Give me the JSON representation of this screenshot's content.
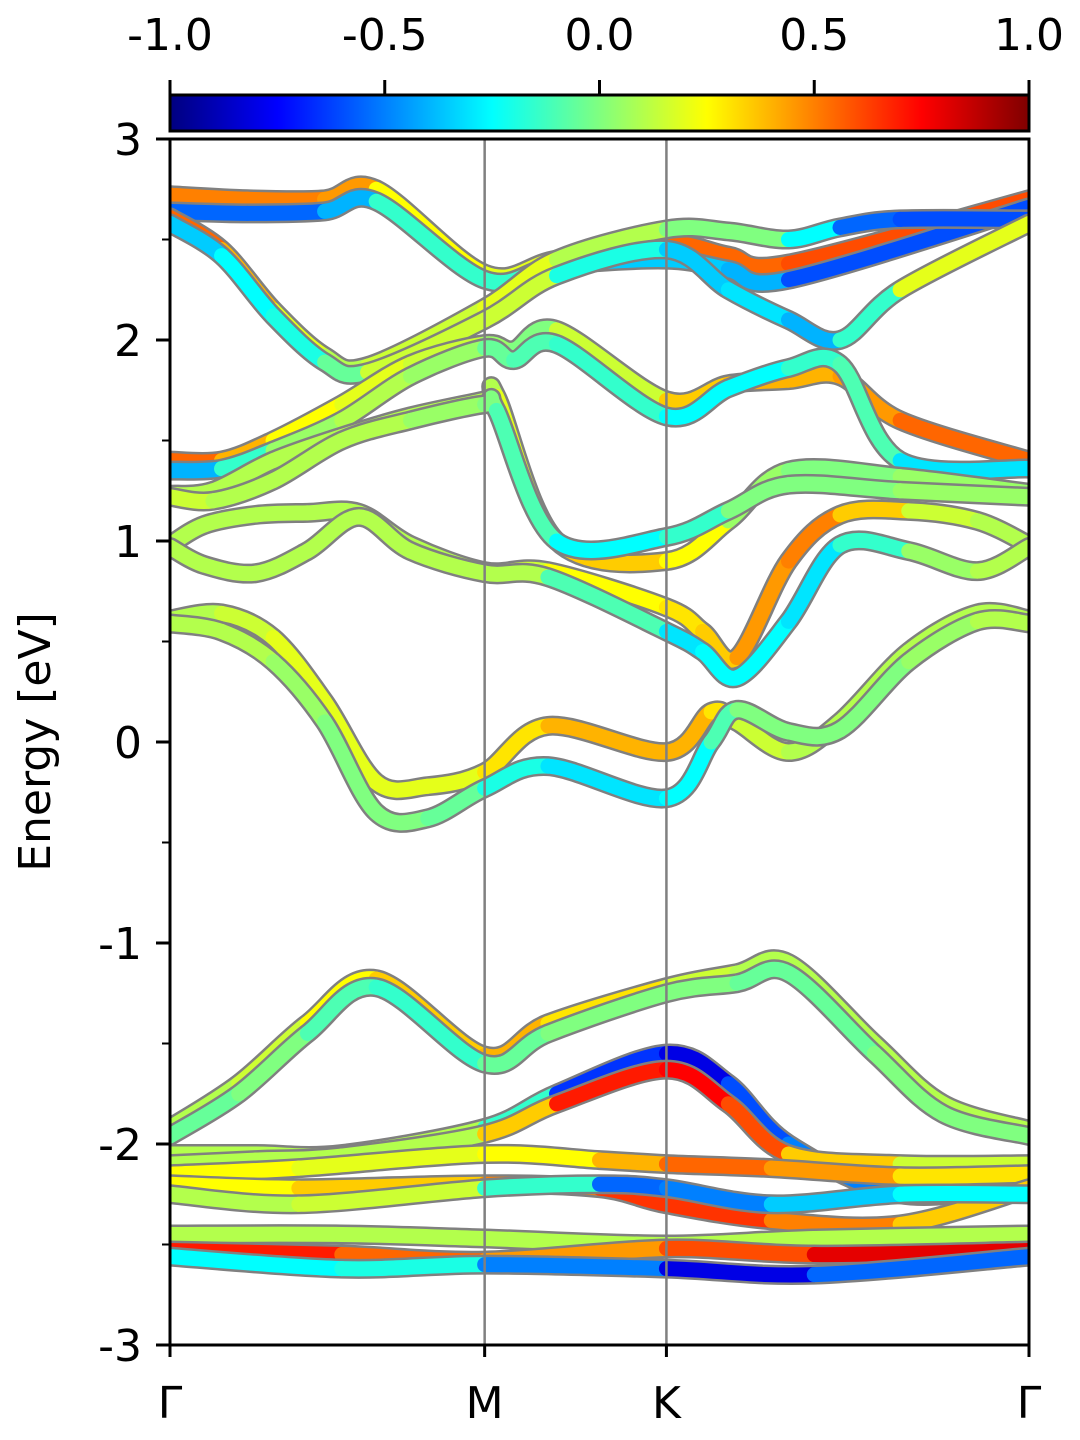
{
  "chart_data": {
    "type": "line",
    "title": "",
    "xlabel": "",
    "ylabel": "Energy [eV]",
    "ylim": [
      -3,
      3
    ],
    "yticks": [
      -3,
      -2,
      -1,
      0,
      1,
      2,
      3
    ],
    "ytick_labels": [
      "-3",
      "-2",
      "-1",
      "0",
      "1",
      "2",
      "3"
    ],
    "kpath": [
      {
        "label": "Γ",
        "x": 0.0
      },
      {
        "label": "M",
        "x": 0.3663
      },
      {
        "label": "K",
        "x": 0.5779
      },
      {
        "label": "Γ",
        "x": 1.0
      }
    ],
    "colorbar": {
      "colormap": "jet",
      "range": [
        -1.0,
        1.0
      ],
      "ticks": [
        -1.0,
        -0.5,
        0.0,
        0.5,
        1.0
      ],
      "tick_labels": [
        "-1.0",
        "-0.5",
        "0.0",
        "0.5",
        "1.0"
      ],
      "placement": "top"
    },
    "grid": false,
    "series": [
      {
        "x": [
          0,
          0.09,
          0.18,
          0.24,
          0.3663,
          0.45,
          0.5779,
          0.65,
          0.72,
          1.0
        ],
        "y": [
          2.72,
          2.7,
          2.7,
          2.75,
          2.33,
          2.4,
          2.48,
          2.42,
          2.38,
          2.7
        ],
        "c": [
          0.5,
          0.5,
          0.5,
          0.4,
          0.1,
          0.3,
          0.6,
          0.5,
          0.6,
          0.6
        ]
      },
      {
        "x": [
          0,
          0.09,
          0.18,
          0.24,
          0.3663,
          0.45,
          0.5779,
          0.65,
          0.72,
          1.0
        ],
        "y": [
          2.64,
          2.63,
          2.64,
          2.69,
          2.3,
          2.37,
          2.4,
          2.35,
          2.3,
          2.66
        ],
        "c": [
          -0.5,
          -0.6,
          -0.5,
          -0.3,
          0.0,
          -0.3,
          -0.4,
          -0.3,
          -0.5,
          -0.7
        ]
      },
      {
        "x": [
          0,
          0.06,
          0.12,
          0.18,
          0.23,
          0.3663,
          0.45,
          0.5779,
          0.65,
          0.72,
          0.78,
          0.85,
          1.0
        ],
        "y": [
          2.61,
          2.45,
          2.15,
          1.92,
          1.87,
          2.16,
          2.4,
          2.55,
          2.54,
          2.5,
          2.56,
          2.6,
          2.6
        ],
        "c": [
          0.6,
          0.5,
          0.3,
          0.1,
          0.1,
          0.2,
          0.2,
          0.0,
          0.0,
          0.0,
          -0.5,
          -0.6,
          -0.6
        ]
      },
      {
        "x": [
          0,
          0.06,
          0.12,
          0.18,
          0.23,
          0.3663,
          0.45,
          0.5779,
          0.65,
          0.72,
          0.78,
          0.85,
          1.0
        ],
        "y": [
          2.58,
          2.42,
          2.12,
          1.89,
          1.84,
          2.1,
          2.32,
          2.45,
          2.25,
          2.1,
          2.0,
          2.25,
          2.58
        ],
        "c": [
          -0.4,
          -0.3,
          -0.2,
          -0.2,
          0.1,
          0.2,
          0.1,
          -0.5,
          -0.2,
          -0.4,
          -0.4,
          0.1,
          0.3
        ]
      },
      {
        "x": [
          0,
          0.06,
          0.12,
          0.2,
          0.28,
          0.3663,
          0.4,
          0.45,
          0.5779,
          0.65,
          0.72,
          0.78,
          0.85,
          1.0
        ],
        "y": [
          1.4,
          1.4,
          1.5,
          1.68,
          1.88,
          1.98,
          1.95,
          2.05,
          1.7,
          1.78,
          1.8,
          1.82,
          1.6,
          1.4
        ],
        "c": [
          0.6,
          0.5,
          0.3,
          0.2,
          0.2,
          0.1,
          0.0,
          0.0,
          0.3,
          0.4,
          0.4,
          0.4,
          0.5,
          0.6
        ]
      },
      {
        "x": [
          0,
          0.06,
          0.12,
          0.2,
          0.28,
          0.3663,
          0.4,
          0.45,
          0.5779,
          0.65,
          0.72,
          0.78,
          0.85,
          1.0
        ],
        "y": [
          1.35,
          1.36,
          1.45,
          1.6,
          1.82,
          1.96,
          1.9,
          1.98,
          1.62,
          1.76,
          1.86,
          1.88,
          1.4,
          1.36
        ],
        "c": [
          -0.5,
          -0.3,
          0.0,
          0.1,
          0.1,
          0.0,
          -0.1,
          -0.1,
          -0.2,
          -0.3,
          -0.2,
          -0.1,
          -0.1,
          -0.5
        ]
      },
      {
        "x": [
          0,
          0.05,
          0.12,
          0.2,
          0.28,
          0.3663,
          0.38,
          0.45,
          0.5779,
          0.65,
          0.72,
          0.85,
          1.0
        ],
        "y": [
          1.23,
          1.25,
          1.4,
          1.52,
          1.62,
          1.7,
          1.72,
          1.0,
          0.9,
          1.1,
          1.35,
          1.32,
          1.24
        ],
        "c": [
          0.1,
          0.1,
          0.1,
          0.1,
          0.1,
          0.1,
          0.1,
          0.3,
          0.4,
          0.1,
          0.0,
          0.0,
          0.1
        ]
      },
      {
        "x": [
          0,
          0.05,
          0.12,
          0.2,
          0.28,
          0.3663,
          0.38,
          0.45,
          0.5779,
          0.65,
          0.72,
          0.85,
          1.0
        ],
        "y": [
          1.22,
          1.2,
          1.3,
          1.5,
          1.6,
          1.68,
          1.65,
          1.0,
          1.02,
          1.15,
          1.28,
          1.25,
          1.22
        ],
        "c": [
          0.2,
          0.1,
          0.1,
          0.1,
          0.1,
          0.0,
          0.0,
          -0.2,
          -0.3,
          0.0,
          0.0,
          0.0,
          0.1
        ]
      },
      {
        "x": [
          0,
          0.04,
          0.1,
          0.16,
          0.22,
          0.28,
          0.3663,
          0.44,
          0.5779,
          0.62,
          0.66,
          0.72,
          0.78,
          0.86,
          0.94,
          1.0
        ],
        "y": [
          0.98,
          1.08,
          1.13,
          1.14,
          1.14,
          0.98,
          0.85,
          0.85,
          0.67,
          0.55,
          0.42,
          0.9,
          1.13,
          1.15,
          1.1,
          0.98
        ],
        "c": [
          0.1,
          0.1,
          0.1,
          0.1,
          0.1,
          0.1,
          0.1,
          0.2,
          0.3,
          0.3,
          0.4,
          0.5,
          0.5,
          0.2,
          0.1,
          0.1
        ]
      },
      {
        "x": [
          0,
          0.04,
          0.1,
          0.16,
          0.22,
          0.28,
          0.3663,
          0.44,
          0.5779,
          0.62,
          0.66,
          0.72,
          0.78,
          0.86,
          0.94,
          1.0
        ],
        "y": [
          0.97,
          0.88,
          0.84,
          0.95,
          1.12,
          0.95,
          0.84,
          0.82,
          0.55,
          0.45,
          0.32,
          0.6,
          0.98,
          0.95,
          0.85,
          0.97
        ],
        "c": [
          0.1,
          0.1,
          0.1,
          0.1,
          0.1,
          0.1,
          0.1,
          0.1,
          -0.3,
          -0.3,
          -0.2,
          -0.3,
          -0.3,
          0.0,
          0.1,
          0.1
        ]
      },
      {
        "x": [
          0,
          0.06,
          0.12,
          0.18,
          0.24,
          0.3,
          0.3663,
          0.44,
          0.5779,
          0.63,
          0.66,
          0.72,
          0.78,
          0.86,
          0.94,
          1.0
        ],
        "y": [
          0.61,
          0.64,
          0.52,
          0.2,
          -0.2,
          -0.22,
          -0.15,
          0.08,
          -0.05,
          0.15,
          0.1,
          -0.05,
          0.1,
          0.45,
          0.64,
          0.61
        ],
        "c": [
          0.1,
          0.1,
          0.2,
          0.2,
          0.2,
          0.2,
          0.2,
          0.4,
          0.4,
          0.4,
          0.2,
          0.1,
          0.1,
          0.1,
          0.1,
          0.1
        ]
      },
      {
        "x": [
          0,
          0.06,
          0.12,
          0.18,
          0.24,
          0.3,
          0.3663,
          0.44,
          0.5779,
          0.63,
          0.66,
          0.72,
          0.78,
          0.86,
          0.94,
          1.0
        ],
        "y": [
          0.59,
          0.55,
          0.4,
          0.1,
          -0.35,
          -0.38,
          -0.23,
          -0.12,
          -0.28,
          0.0,
          0.16,
          0.05,
          0.06,
          0.4,
          0.6,
          0.59
        ],
        "c": [
          0.1,
          0.1,
          0.1,
          0.0,
          0.0,
          0.0,
          -0.1,
          -0.3,
          -0.3,
          -0.2,
          0.0,
          0.0,
          0.0,
          0.0,
          0.1,
          0.1
        ]
      },
      {
        "x": [
          0,
          0.08,
          0.16,
          0.24,
          0.3663,
          0.44,
          0.5779,
          0.66,
          0.72,
          0.82,
          0.9,
          1.0
        ],
        "y": [
          -1.92,
          -1.7,
          -1.4,
          -1.18,
          -1.56,
          -1.4,
          -1.22,
          -1.15,
          -1.1,
          -1.5,
          -1.8,
          -1.93
        ],
        "c": [
          0.1,
          0.1,
          0.2,
          0.3,
          0.4,
          0.4,
          0.2,
          0.1,
          0.1,
          0.1,
          0.1,
          0.1
        ]
      },
      {
        "x": [
          0,
          0.08,
          0.16,
          0.24,
          0.3663,
          0.44,
          0.5779,
          0.66,
          0.72,
          0.82,
          0.9,
          1.0
        ],
        "y": [
          -1.96,
          -1.75,
          -1.45,
          -1.22,
          -1.6,
          -1.45,
          -1.25,
          -1.2,
          -1.15,
          -1.55,
          -1.85,
          -1.96
        ],
        "c": [
          -0.1,
          0.0,
          0.0,
          -0.2,
          -0.1,
          0.0,
          0.0,
          0.0,
          -0.1,
          0.0,
          0.0,
          0.0
        ]
      },
      {
        "x": [
          0,
          0.1,
          0.2,
          0.3663,
          0.45,
          0.5779,
          0.65,
          0.72,
          0.85,
          1.0
        ],
        "y": [
          -2.05,
          -2.05,
          -2.05,
          -1.92,
          -1.75,
          -1.55,
          -1.7,
          -2.0,
          -2.25,
          -2.2
        ],
        "c": [
          0.1,
          0.1,
          0.1,
          0.1,
          -0.4,
          -0.9,
          -0.7,
          -0.5,
          -0.5,
          -0.3
        ]
      },
      {
        "x": [
          0,
          0.1,
          0.2,
          0.3663,
          0.45,
          0.5779,
          0.65,
          0.72,
          0.85,
          1.0
        ],
        "y": [
          -2.1,
          -2.08,
          -2.06,
          -1.95,
          -1.8,
          -1.63,
          -1.8,
          -2.05,
          -2.1,
          -2.1
        ],
        "c": [
          0.1,
          0.1,
          0.1,
          0.1,
          0.6,
          0.8,
          0.7,
          0.5,
          0.2,
          0.1
        ]
      },
      {
        "x": [
          0,
          0.15,
          0.3663,
          0.5,
          0.5779,
          0.7,
          0.85,
          1.0
        ],
        "y": [
          -2.15,
          -2.12,
          -2.05,
          -2.08,
          -2.1,
          -2.12,
          -2.16,
          -2.15
        ],
        "c": [
          0.3,
          0.2,
          0.2,
          0.3,
          0.5,
          0.6,
          0.3,
          0.3
        ]
      },
      {
        "x": [
          0,
          0.15,
          0.3663,
          0.5,
          0.5779,
          0.7,
          0.85,
          1.0
        ],
        "y": [
          -2.2,
          -2.22,
          -2.2,
          -2.22,
          -2.3,
          -2.38,
          -2.4,
          -2.22
        ],
        "c": [
          0.2,
          0.3,
          0.4,
          0.6,
          0.7,
          0.6,
          0.4,
          0.3
        ]
      },
      {
        "x": [
          0,
          0.15,
          0.3663,
          0.5,
          0.5779,
          0.7,
          0.85,
          1.0
        ],
        "y": [
          -2.25,
          -2.3,
          -2.22,
          -2.2,
          -2.22,
          -2.3,
          -2.25,
          -2.25
        ],
        "c": [
          0.1,
          0.1,
          0.2,
          -0.5,
          -0.6,
          -0.4,
          -0.3,
          -0.2
        ]
      },
      {
        "x": [
          0,
          0.2,
          0.3663,
          0.5779,
          0.75,
          1.0
        ],
        "y": [
          -2.45,
          -2.45,
          -2.47,
          -2.5,
          -2.47,
          -2.45
        ],
        "c": [
          0.1,
          0.1,
          0.1,
          0.1,
          0.1,
          0.1
        ]
      },
      {
        "x": [
          0,
          0.2,
          0.3663,
          0.5779,
          0.75,
          1.0
        ],
        "y": [
          -2.53,
          -2.55,
          -2.58,
          -2.52,
          -2.55,
          -2.53
        ],
        "c": [
          0.8,
          0.6,
          0.5,
          0.4,
          0.8,
          0.8
        ]
      },
      {
        "x": [
          0,
          0.2,
          0.3663,
          0.5779,
          0.75,
          1.0
        ],
        "y": [
          -2.56,
          -2.62,
          -2.6,
          -2.62,
          -2.65,
          -2.56
        ],
        "c": [
          -0.3,
          -0.2,
          -0.2,
          -0.8,
          -0.8,
          -0.3
        ]
      }
    ]
  }
}
